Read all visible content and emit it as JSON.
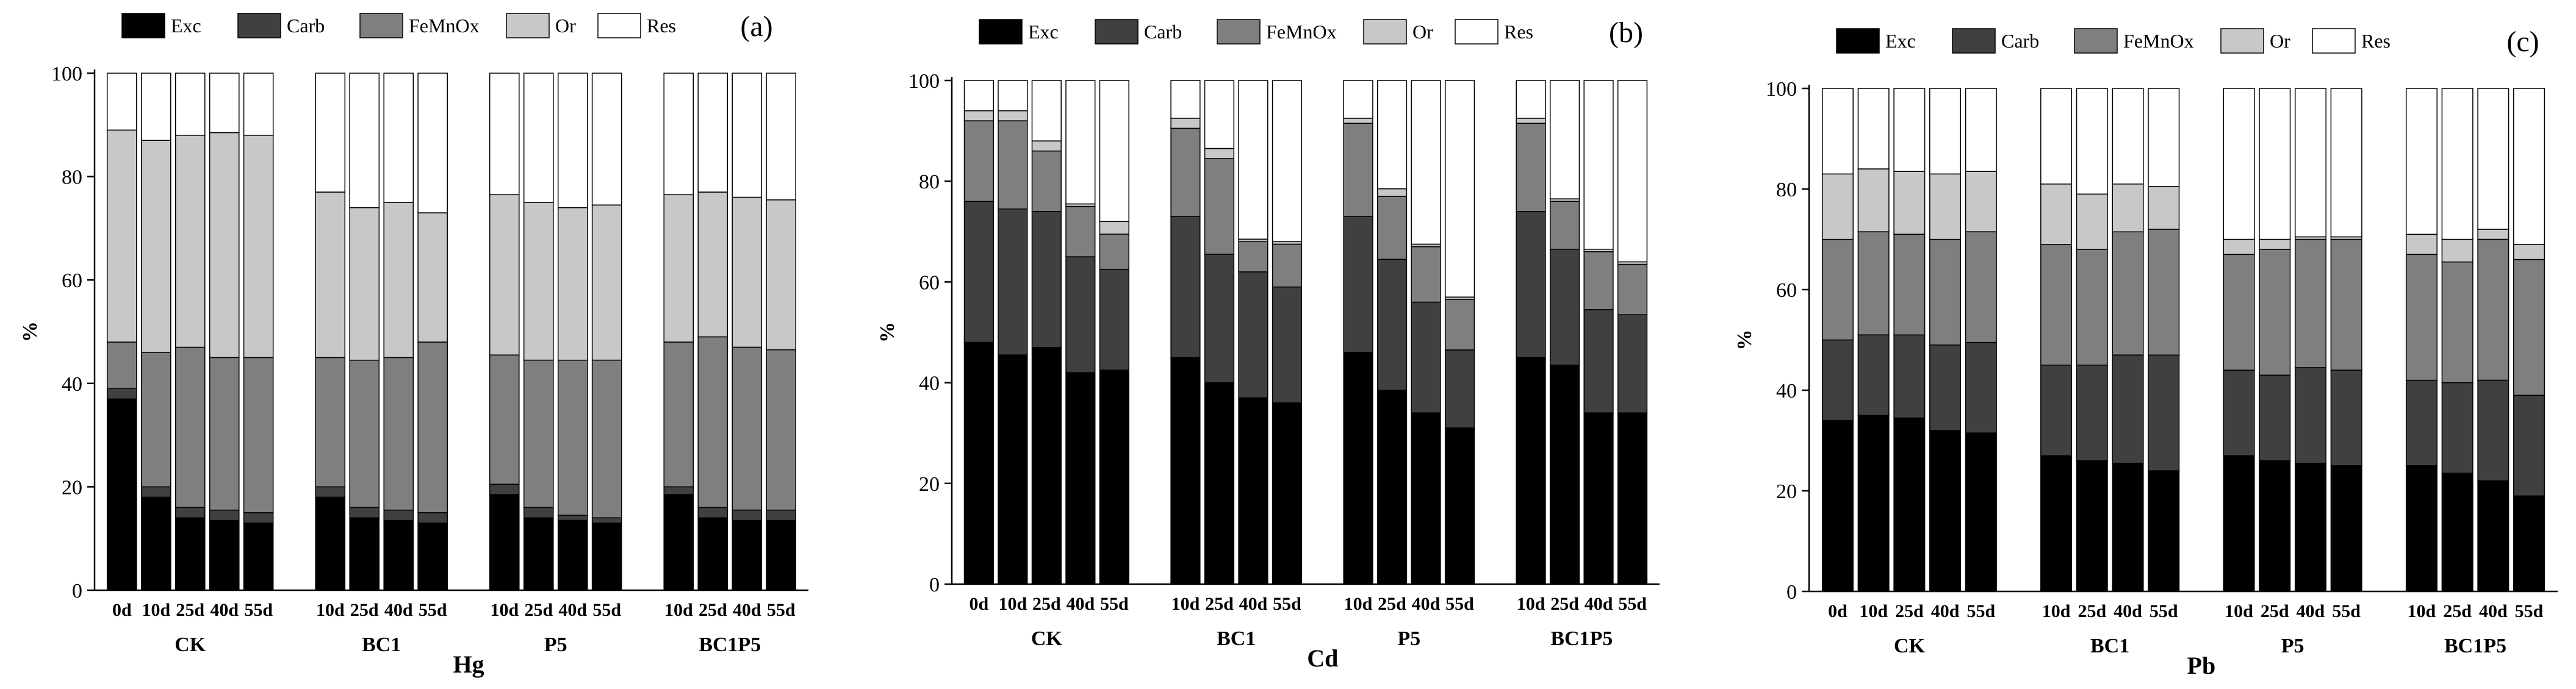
{
  "fractions": [
    "Exc",
    "Carb",
    "FeMnOx",
    "Or",
    "Res"
  ],
  "colors": {
    "Exc": "#000000",
    "Carb": "#404040",
    "FeMnOx": "#7f7f7f",
    "Or": "#c8c8c8",
    "Res": "#ffffff"
  },
  "chart_data": [
    {
      "type": "bar",
      "stacked": true,
      "panel_label": "(a)",
      "metal": "Hg",
      "ylabel": "%",
      "ylim": [
        0,
        100
      ],
      "yticks": [
        0,
        20,
        40,
        60,
        80,
        100
      ],
      "groups": [
        "CK",
        "BC1",
        "P5",
        "BC1P5"
      ],
      "categories": [
        {
          "group": "CK",
          "label": "0d"
        },
        {
          "group": "CK",
          "label": "10d"
        },
        {
          "group": "CK",
          "label": "25d"
        },
        {
          "group": "CK",
          "label": "40d"
        },
        {
          "group": "CK",
          "label": "55d"
        },
        {
          "group": "BC1",
          "label": "10d"
        },
        {
          "group": "BC1",
          "label": "25d"
        },
        {
          "group": "BC1",
          "label": "40d"
        },
        {
          "group": "BC1",
          "label": "55d"
        },
        {
          "group": "P5",
          "label": "10d"
        },
        {
          "group": "P5",
          "label": "25d"
        },
        {
          "group": "P5",
          "label": "40d"
        },
        {
          "group": "P5",
          "label": "55d"
        },
        {
          "group": "BC1P5",
          "label": "10d"
        },
        {
          "group": "BC1P5",
          "label": "25d"
        },
        {
          "group": "BC1P5",
          "label": "40d"
        },
        {
          "group": "BC1P5",
          "label": "55d"
        }
      ],
      "series": [
        {
          "name": "Exc",
          "values": [
            37,
            18,
            14,
            13.5,
            13,
            18,
            14,
            13.5,
            13,
            18.5,
            14,
            13.5,
            13,
            18.5,
            14,
            13.5,
            13.5
          ]
        },
        {
          "name": "Carb",
          "values": [
            2,
            2,
            2,
            2,
            2,
            2,
            2,
            2,
            2,
            2,
            2,
            1,
            1,
            1.5,
            2,
            2,
            2
          ]
        },
        {
          "name": "FeMnOx",
          "values": [
            9,
            26,
            31,
            29.5,
            30,
            25,
            28.5,
            29.5,
            33,
            25,
            28.5,
            30,
            30.5,
            28,
            33,
            31.5,
            31
          ]
        },
        {
          "name": "Or",
          "values": [
            41,
            41,
            41,
            43.5,
            43,
            32,
            29.5,
            30,
            25,
            31,
            30.5,
            29.5,
            30,
            28.5,
            28,
            29,
            29
          ]
        },
        {
          "name": "Res",
          "values": [
            11,
            13,
            12,
            11.5,
            12,
            23,
            26,
            25,
            27,
            23.5,
            25,
            26,
            25.5,
            23.5,
            23,
            24,
            24.5
          ]
        }
      ]
    },
    {
      "type": "bar",
      "stacked": true,
      "panel_label": "(b)",
      "metal": "Cd",
      "ylabel": "%",
      "ylim": [
        0,
        100
      ],
      "yticks": [
        0,
        20,
        40,
        60,
        80,
        100
      ],
      "groups": [
        "CK",
        "BC1",
        "P5",
        "BC1P5"
      ],
      "categories": [
        {
          "group": "CK",
          "label": "0d"
        },
        {
          "group": "CK",
          "label": "10d"
        },
        {
          "group": "CK",
          "label": "25d"
        },
        {
          "group": "CK",
          "label": "40d"
        },
        {
          "group": "CK",
          "label": "55d"
        },
        {
          "group": "BC1",
          "label": "10d"
        },
        {
          "group": "BC1",
          "label": "25d"
        },
        {
          "group": "BC1",
          "label": "40d"
        },
        {
          "group": "BC1",
          "label": "55d"
        },
        {
          "group": "P5",
          "label": "10d"
        },
        {
          "group": "P5",
          "label": "25d"
        },
        {
          "group": "P5",
          "label": "40d"
        },
        {
          "group": "P5",
          "label": "55d"
        },
        {
          "group": "BC1P5",
          "label": "10d"
        },
        {
          "group": "BC1P5",
          "label": "25d"
        },
        {
          "group": "BC1P5",
          "label": "40d"
        },
        {
          "group": "BC1P5",
          "label": "55d"
        }
      ],
      "series": [
        {
          "name": "Exc",
          "values": [
            48,
            45.5,
            47,
            42,
            42.5,
            45,
            40,
            37,
            36,
            46,
            38.5,
            34,
            31,
            45,
            43.5,
            34,
            34
          ]
        },
        {
          "name": "Carb",
          "values": [
            28,
            29,
            27,
            23,
            20,
            28,
            25.5,
            25,
            23,
            27,
            26,
            22,
            15.5,
            29,
            23,
            20.5,
            19.5
          ]
        },
        {
          "name": "FeMnOx",
          "values": [
            16,
            17.5,
            12,
            10,
            7,
            17.5,
            19,
            6,
            8.5,
            18.5,
            12.5,
            11,
            10,
            17.5,
            9.5,
            11.5,
            10
          ]
        },
        {
          "name": "Or",
          "values": [
            2,
            2,
            2,
            0.5,
            2.5,
            2,
            2,
            0.5,
            0.5,
            1,
            1.5,
            0.5,
            0.5,
            1,
            0.5,
            0.5,
            0.5
          ]
        },
        {
          "name": "Res",
          "values": [
            6,
            6,
            12,
            24.5,
            28,
            7.5,
            13.5,
            31.5,
            32,
            7.5,
            21.5,
            32.5,
            43,
            7.5,
            23.5,
            33.5,
            36
          ]
        }
      ]
    },
    {
      "type": "bar",
      "stacked": true,
      "panel_label": "(c)",
      "metal": "Pb",
      "ylabel": "%",
      "ylim": [
        0,
        100
      ],
      "yticks": [
        0,
        20,
        40,
        60,
        80,
        100
      ],
      "groups": [
        "CK",
        "BC1",
        "P5",
        "BC1P5"
      ],
      "categories": [
        {
          "group": "CK",
          "label": "0d"
        },
        {
          "group": "CK",
          "label": "10d"
        },
        {
          "group": "CK",
          "label": "25d"
        },
        {
          "group": "CK",
          "label": "40d"
        },
        {
          "group": "CK",
          "label": "55d"
        },
        {
          "group": "BC1",
          "label": "10d"
        },
        {
          "group": "BC1",
          "label": "25d"
        },
        {
          "group": "BC1",
          "label": "40d"
        },
        {
          "group": "BC1",
          "label": "55d"
        },
        {
          "group": "P5",
          "label": "10d"
        },
        {
          "group": "P5",
          "label": "25d"
        },
        {
          "group": "P5",
          "label": "40d"
        },
        {
          "group": "P5",
          "label": "55d"
        },
        {
          "group": "BC1P5",
          "label": "10d"
        },
        {
          "group": "BC1P5",
          "label": "25d"
        },
        {
          "group": "BC1P5",
          "label": "40d"
        },
        {
          "group": "BC1P5",
          "label": "55d"
        }
      ],
      "series": [
        {
          "name": "Exc",
          "values": [
            34,
            35,
            34.5,
            32,
            31.5,
            27,
            26,
            25.5,
            24,
            27,
            26,
            25.5,
            25,
            25,
            23.5,
            22,
            19
          ]
        },
        {
          "name": "Carb",
          "values": [
            16,
            16,
            16.5,
            17,
            18,
            18,
            19,
            21.5,
            23,
            17,
            17,
            19,
            19,
            17,
            18,
            20,
            20
          ]
        },
        {
          "name": "FeMnOx",
          "values": [
            20,
            20.5,
            20,
            21,
            22,
            24,
            23,
            24.5,
            25,
            23,
            25,
            25.5,
            26,
            25,
            24,
            28,
            27
          ]
        },
        {
          "name": "Or",
          "values": [
            13,
            12.5,
            12.5,
            13,
            12,
            12,
            11,
            9.5,
            8.5,
            3,
            2,
            0.5,
            0.5,
            4,
            4.5,
            2,
            3
          ]
        },
        {
          "name": "Res",
          "values": [
            17,
            16,
            16.5,
            17,
            16.5,
            19,
            21,
            19,
            19.5,
            30,
            30,
            29.5,
            29.5,
            29,
            30,
            28,
            31
          ]
        }
      ]
    }
  ]
}
